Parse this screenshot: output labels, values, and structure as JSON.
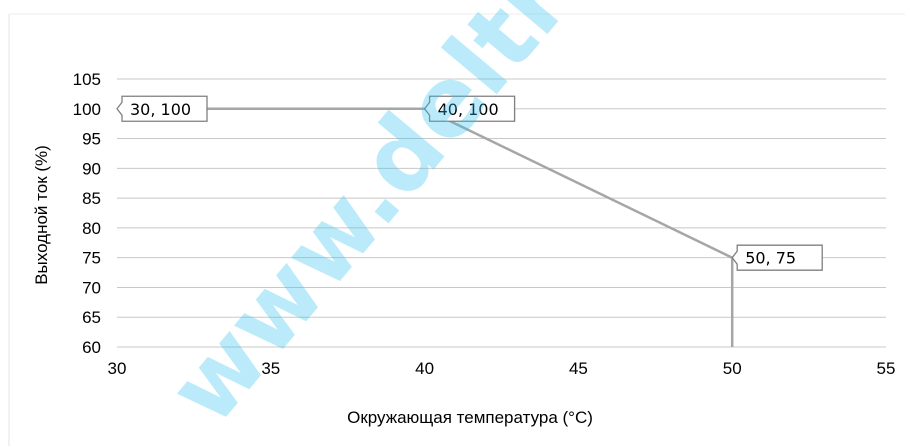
{
  "chart_data": {
    "type": "line",
    "title": "",
    "xlabel": "Окружающая температура (°C)",
    "ylabel": "Выходной ток (%)",
    "xlim": [
      30,
      55
    ],
    "ylim": [
      60,
      105
    ],
    "x_ticks": [
      "30",
      "35",
      "40",
      "45",
      "50",
      "55"
    ],
    "y_ticks": [
      "105",
      "100",
      "95",
      "90",
      "85",
      "80",
      "75",
      "70",
      "65",
      "60"
    ],
    "grid": true,
    "series": [
      {
        "points": [
          {
            "x": 30,
            "y": 100
          },
          {
            "x": 40,
            "y": 100
          },
          {
            "x": 50,
            "y": 75
          },
          {
            "x": 50,
            "y": 60
          }
        ],
        "color": "#a6a6a6"
      }
    ],
    "annotations": [
      {
        "x": 30,
        "y": 100,
        "text": "30, 100"
      },
      {
        "x": 40,
        "y": 100,
        "text": "40, 100"
      },
      {
        "x": 50,
        "y": 75,
        "text": "50, 75"
      }
    ],
    "colors": {
      "grid": "#c8c8c8",
      "line": "#a6a6a6",
      "callout_border": "#7f7f7f"
    }
  },
  "watermark": {
    "lines": [
      "www.deltronics.ru"
    ],
    "color": "#35c3f0"
  }
}
